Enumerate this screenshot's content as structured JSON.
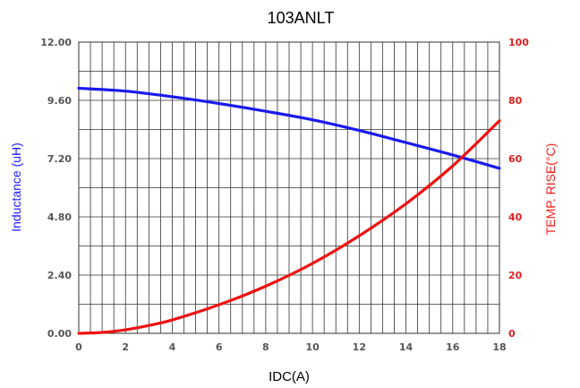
{
  "chart_data": {
    "type": "line",
    "title": "103ANLT",
    "xlabel": "IDC(A)",
    "ylabel_left": "Inductance (uH)",
    "ylabel_right": "TEMP. RISE(°C)",
    "xlim": [
      0,
      18
    ],
    "ylim_left": [
      0,
      12
    ],
    "ylim_right": [
      0,
      100
    ],
    "x_ticks": [
      "0",
      "2",
      "4",
      "6",
      "8",
      "10",
      "12",
      "14",
      "16",
      "18"
    ],
    "y_left_ticks": [
      "0.00",
      "2.40",
      "4.80",
      "7.20",
      "9.60",
      "12.00"
    ],
    "y_right_ticks": [
      "0",
      "20",
      "40",
      "60",
      "80",
      "100"
    ],
    "grid": true,
    "series": [
      {
        "axis": "left",
        "color": "#1a1aee",
        "x": [
          0,
          2,
          4,
          6,
          8,
          10,
          12,
          14,
          16,
          18
        ],
        "values": [
          10.1,
          9.98,
          9.75,
          9.47,
          9.15,
          8.8,
          8.36,
          7.86,
          7.35,
          6.8
        ]
      },
      {
        "axis": "right",
        "color": "#ee1111",
        "x": [
          0,
          1,
          2,
          3,
          4,
          6,
          8,
          10,
          12,
          14,
          16,
          18
        ],
        "values": [
          0,
          0.3,
          1.2,
          2.7,
          4.6,
          9.8,
          16.2,
          24.0,
          33.5,
          44.5,
          57.5,
          73.0
        ]
      }
    ]
  }
}
